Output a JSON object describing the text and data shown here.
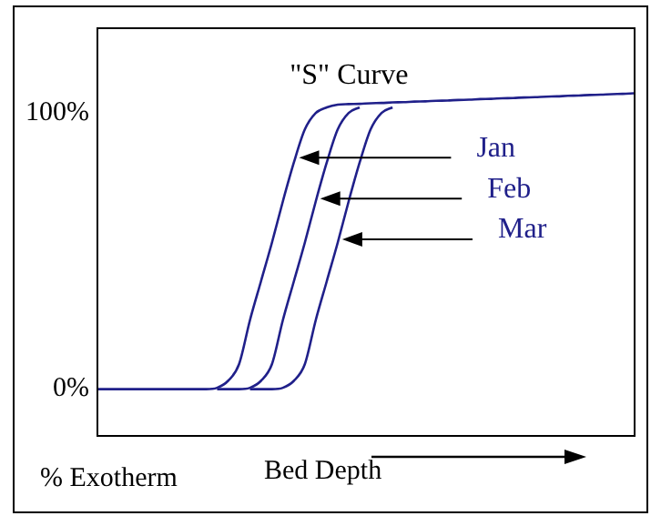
{
  "chart_data": {
    "type": "line",
    "title": "\"S\" Curve",
    "xlabel": "Bed Depth",
    "ylabel": "% Exotherm",
    "categories": [
      null,
      null,
      null,
      null,
      null,
      null,
      null,
      null,
      null,
      null,
      null,
      null,
      null,
      null,
      null,
      null,
      null,
      null,
      null,
      null,
      null,
      null,
      null,
      null,
      null,
      null,
      null,
      null,
      null,
      null,
      null,
      null,
      null,
      null,
      null,
      null,
      null,
      null,
      null,
      null,
      null,
      null,
      null,
      null,
      null,
      null,
      null,
      null,
      null,
      null
    ],
    "series": [
      {
        "name": "Jan",
        "color": "#20208a",
        "values": [
          0,
          0,
          0,
          0,
          0,
          0,
          0,
          0,
          0,
          0,
          0,
          0.5,
          3,
          9,
          25,
          39,
          53,
          68,
          82,
          94,
          100,
          102,
          103.0,
          103.2,
          103.3,
          103.5,
          103.6,
          103.8,
          103.9,
          104.1,
          104.2,
          104.4,
          104.5,
          104.7,
          104.8,
          105.0,
          105.1,
          105.3,
          105.4,
          105.6,
          105.7,
          105.9,
          106.0,
          106.2,
          106.3,
          106.5,
          106.6,
          106.8,
          106.9,
          107.1
        ]
      },
      {
        "name": "Feb",
        "color": "#20208a",
        "values": [
          null,
          null,
          null,
          null,
          null,
          null,
          null,
          null,
          null,
          null,
          null,
          0,
          0,
          0,
          0.5,
          3,
          9,
          25,
          39,
          53,
          68,
          82,
          94,
          100,
          102,
          null,
          null,
          null,
          null,
          null,
          null,
          null,
          null,
          null,
          null,
          null,
          null,
          null,
          null,
          null,
          null,
          null,
          null,
          null,
          null,
          null,
          null,
          null,
          null,
          null
        ]
      },
      {
        "name": "Mar",
        "color": "#20208a",
        "values": [
          null,
          null,
          null,
          null,
          null,
          null,
          null,
          null,
          null,
          null,
          null,
          null,
          null,
          null,
          0,
          0,
          0,
          0.5,
          3,
          9,
          25,
          39,
          53,
          68,
          82,
          94,
          100,
          102,
          null,
          null,
          null,
          null,
          null,
          null,
          null,
          null,
          null,
          null,
          null,
          null,
          null,
          null,
          null,
          null,
          null,
          null,
          null,
          null,
          null,
          null
        ]
      }
    ],
    "ylim": [
      -16.6,
      131
    ],
    "yticks": [
      {
        "value": 0,
        "label": "0%"
      },
      {
        "value": 100,
        "label": "100%"
      }
    ],
    "tick_labels": "y",
    "marker": "none",
    "line_style": "solid"
  }
}
